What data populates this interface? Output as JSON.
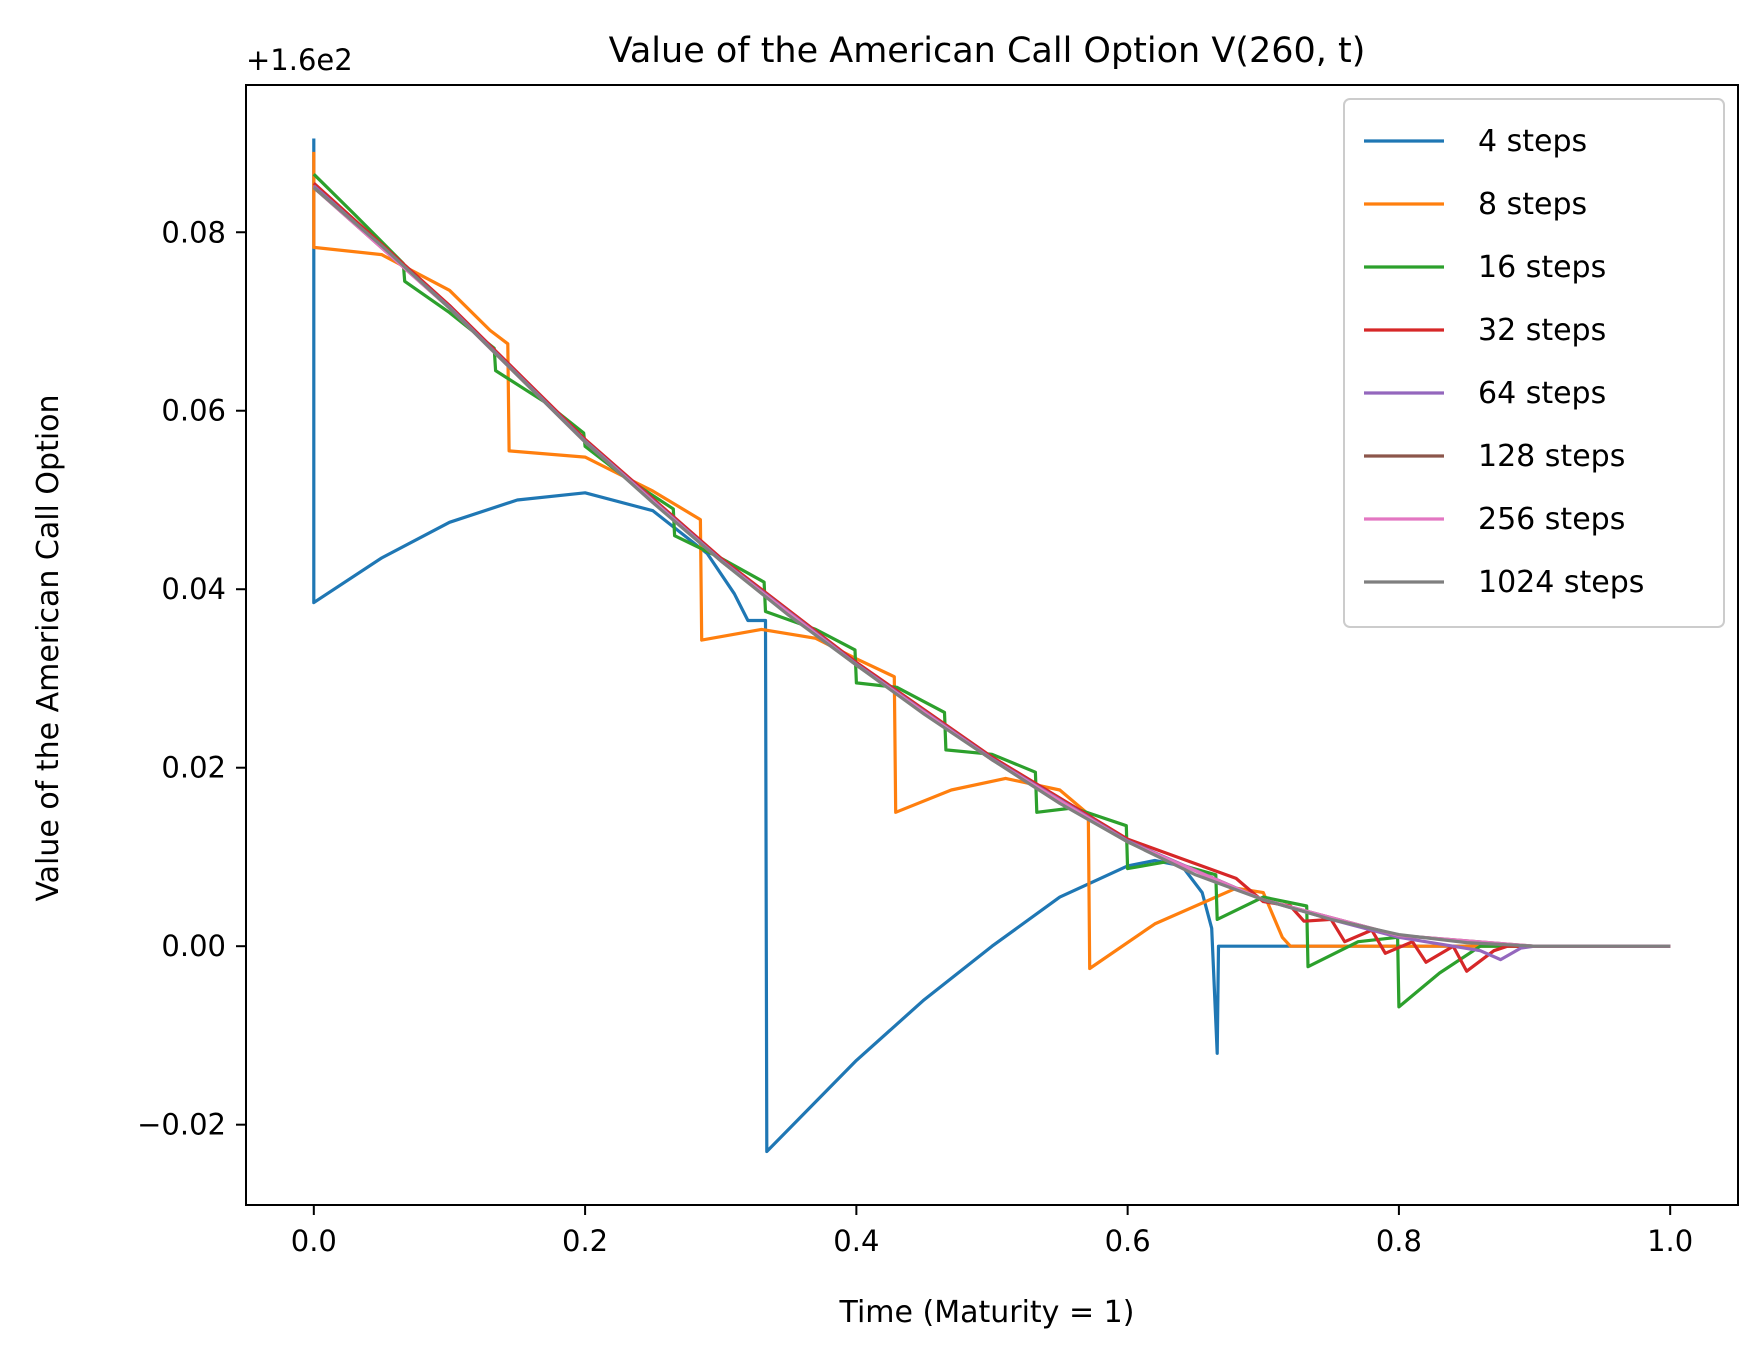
{
  "chart_data": {
    "type": "line",
    "title": "Value of the American Call Option V(260, t)",
    "xlabel": "Time (Maturity = 1)",
    "ylabel": "Value of the American Call Option",
    "y_offset_text": "+1.6e2",
    "xlim": [
      -0.05,
      1.05
    ],
    "ylim": [
      -0.029,
      0.0965
    ],
    "x_ticks": [
      0.0,
      0.2,
      0.4,
      0.6,
      0.8,
      1.0
    ],
    "x_tick_labels": [
      "0.0",
      "0.2",
      "0.4",
      "0.6",
      "0.8",
      "1.0"
    ],
    "y_ticks": [
      -0.02,
      0.0,
      0.02,
      0.04,
      0.06,
      0.08
    ],
    "y_tick_labels": [
      "−0.02",
      "0.00",
      "0.02",
      "0.04",
      "0.06",
      "0.08"
    ],
    "grid": false,
    "legend_position": "top-right",
    "series": [
      {
        "name": "4 steps",
        "color": "#1f77b4",
        "points": [
          [
            0.0,
            0.0905
          ],
          [
            0.0,
            0.0385
          ],
          [
            0.05,
            0.0435
          ],
          [
            0.1,
            0.0475
          ],
          [
            0.15,
            0.05
          ],
          [
            0.2,
            0.0508
          ],
          [
            0.25,
            0.0488
          ],
          [
            0.29,
            0.044
          ],
          [
            0.31,
            0.0395
          ],
          [
            0.32,
            0.0365
          ],
          [
            0.333,
            0.0365
          ],
          [
            0.334,
            -0.023
          ],
          [
            0.4,
            -0.0128
          ],
          [
            0.45,
            -0.006
          ],
          [
            0.5,
            0.0
          ],
          [
            0.55,
            0.0055
          ],
          [
            0.6,
            0.009
          ],
          [
            0.62,
            0.0096
          ],
          [
            0.64,
            0.009
          ],
          [
            0.655,
            0.006
          ],
          [
            0.662,
            0.002
          ],
          [
            0.666,
            -0.012
          ],
          [
            0.667,
            0.0
          ],
          [
            1.0,
            0.0
          ]
        ]
      },
      {
        "name": "8 steps",
        "color": "#ff7f0e",
        "points": [
          [
            0.0,
            0.089
          ],
          [
            0.0,
            0.0783
          ],
          [
            0.05,
            0.0775
          ],
          [
            0.1,
            0.0735
          ],
          [
            0.13,
            0.069
          ],
          [
            0.143,
            0.0675
          ],
          [
            0.144,
            0.0555
          ],
          [
            0.2,
            0.0548
          ],
          [
            0.25,
            0.051
          ],
          [
            0.285,
            0.0478
          ],
          [
            0.286,
            0.0343
          ],
          [
            0.33,
            0.0355
          ],
          [
            0.37,
            0.0345
          ],
          [
            0.4,
            0.0322
          ],
          [
            0.428,
            0.0302
          ],
          [
            0.429,
            0.015
          ],
          [
            0.47,
            0.0175
          ],
          [
            0.51,
            0.0188
          ],
          [
            0.55,
            0.0175
          ],
          [
            0.571,
            0.0148
          ],
          [
            0.572,
            -0.0025
          ],
          [
            0.62,
            0.0025
          ],
          [
            0.68,
            0.0065
          ],
          [
            0.7,
            0.006
          ],
          [
            0.714,
            0.001
          ],
          [
            0.72,
            0.0
          ],
          [
            1.0,
            0.0
          ]
        ]
      },
      {
        "name": "16 steps",
        "color": "#2ca02c",
        "points": [
          [
            0.0,
            0.0865
          ],
          [
            0.03,
            0.082
          ],
          [
            0.066,
            0.0765
          ],
          [
            0.067,
            0.0745
          ],
          [
            0.1,
            0.071
          ],
          [
            0.133,
            0.067
          ],
          [
            0.134,
            0.0645
          ],
          [
            0.17,
            0.061
          ],
          [
            0.199,
            0.0575
          ],
          [
            0.2,
            0.056
          ],
          [
            0.23,
            0.0525
          ],
          [
            0.265,
            0.049
          ],
          [
            0.266,
            0.046
          ],
          [
            0.3,
            0.0435
          ],
          [
            0.332,
            0.0408
          ],
          [
            0.333,
            0.0375
          ],
          [
            0.37,
            0.0355
          ],
          [
            0.399,
            0.0332
          ],
          [
            0.4,
            0.0295
          ],
          [
            0.43,
            0.029
          ],
          [
            0.465,
            0.0262
          ],
          [
            0.466,
            0.022
          ],
          [
            0.5,
            0.0215
          ],
          [
            0.532,
            0.0195
          ],
          [
            0.533,
            0.015
          ],
          [
            0.56,
            0.0155
          ],
          [
            0.599,
            0.0135
          ],
          [
            0.6,
            0.0087
          ],
          [
            0.63,
            0.0095
          ],
          [
            0.665,
            0.008
          ],
          [
            0.666,
            0.003
          ],
          [
            0.7,
            0.0055
          ],
          [
            0.732,
            0.0045
          ],
          [
            0.733,
            -0.0023
          ],
          [
            0.77,
            0.0005
          ],
          [
            0.799,
            0.001
          ],
          [
            0.8,
            -0.0068
          ],
          [
            0.83,
            -0.003
          ],
          [
            0.86,
            0.0
          ],
          [
            1.0,
            0.0
          ]
        ]
      },
      {
        "name": "32 steps",
        "color": "#d62728",
        "points": [
          [
            0.0,
            0.0855
          ],
          [
            0.1,
            0.0718
          ],
          [
            0.2,
            0.0568
          ],
          [
            0.3,
            0.0435
          ],
          [
            0.4,
            0.0318
          ],
          [
            0.5,
            0.0212
          ],
          [
            0.6,
            0.012
          ],
          [
            0.68,
            0.0076
          ],
          [
            0.7,
            0.005
          ],
          [
            0.72,
            0.0045
          ],
          [
            0.73,
            0.0028
          ],
          [
            0.75,
            0.003
          ],
          [
            0.76,
            0.0005
          ],
          [
            0.78,
            0.0018
          ],
          [
            0.79,
            -0.0008
          ],
          [
            0.81,
            0.0005
          ],
          [
            0.82,
            -0.0018
          ],
          [
            0.84,
            0.0
          ],
          [
            0.85,
            -0.0028
          ],
          [
            0.87,
            -0.0005
          ],
          [
            0.88,
            0.0
          ],
          [
            1.0,
            0.0
          ]
        ]
      },
      {
        "name": "64 steps",
        "color": "#9467bd",
        "points": [
          [
            0.0,
            0.0852
          ],
          [
            0.1,
            0.0716
          ],
          [
            0.2,
            0.0566
          ],
          [
            0.3,
            0.0433
          ],
          [
            0.4,
            0.0316
          ],
          [
            0.5,
            0.021
          ],
          [
            0.6,
            0.0118
          ],
          [
            0.7,
            0.0052
          ],
          [
            0.75,
            0.003
          ],
          [
            0.8,
            0.001
          ],
          [
            0.84,
            0.0
          ],
          [
            0.86,
            -0.0005
          ],
          [
            0.875,
            -0.0015
          ],
          [
            0.89,
            -0.0002
          ],
          [
            0.9,
            0.0
          ],
          [
            1.0,
            0.0
          ]
        ]
      },
      {
        "name": "128 steps",
        "color": "#8c564b",
        "points": [
          [
            0.0,
            0.085
          ],
          [
            0.1,
            0.0715
          ],
          [
            0.2,
            0.0565
          ],
          [
            0.3,
            0.0432
          ],
          [
            0.4,
            0.0315
          ],
          [
            0.5,
            0.0209
          ],
          [
            0.6,
            0.0117
          ],
          [
            0.7,
            0.0052
          ],
          [
            0.8,
            0.0012
          ],
          [
            0.9,
            0.0
          ],
          [
            1.0,
            0.0
          ]
        ]
      },
      {
        "name": "256 steps",
        "color": "#e377c2",
        "points": [
          [
            0.0,
            0.085
          ],
          [
            0.1,
            0.0715
          ],
          [
            0.2,
            0.0565
          ],
          [
            0.3,
            0.0432
          ],
          [
            0.4,
            0.0315
          ],
          [
            0.5,
            0.0209
          ],
          [
            0.6,
            0.0117
          ],
          [
            0.7,
            0.0052
          ],
          [
            0.8,
            0.0012
          ],
          [
            0.9,
            0.0
          ],
          [
            1.0,
            0.0
          ]
        ]
      },
      {
        "name": "1024 steps",
        "color": "#7f7f7f",
        "points": [
          [
            0.0,
            0.085
          ],
          [
            0.05,
            0.0785
          ],
          [
            0.1,
            0.0715
          ],
          [
            0.15,
            0.064
          ],
          [
            0.2,
            0.0565
          ],
          [
            0.25,
            0.0497
          ],
          [
            0.3,
            0.0432
          ],
          [
            0.35,
            0.0371
          ],
          [
            0.4,
            0.0315
          ],
          [
            0.45,
            0.026
          ],
          [
            0.5,
            0.0209
          ],
          [
            0.55,
            0.016
          ],
          [
            0.6,
            0.0117
          ],
          [
            0.65,
            0.008
          ],
          [
            0.7,
            0.0052
          ],
          [
            0.75,
            0.003
          ],
          [
            0.8,
            0.0013
          ],
          [
            0.85,
            0.0004
          ],
          [
            0.9,
            0.0
          ],
          [
            0.95,
            0.0
          ],
          [
            1.0,
            0.0
          ]
        ]
      }
    ]
  }
}
